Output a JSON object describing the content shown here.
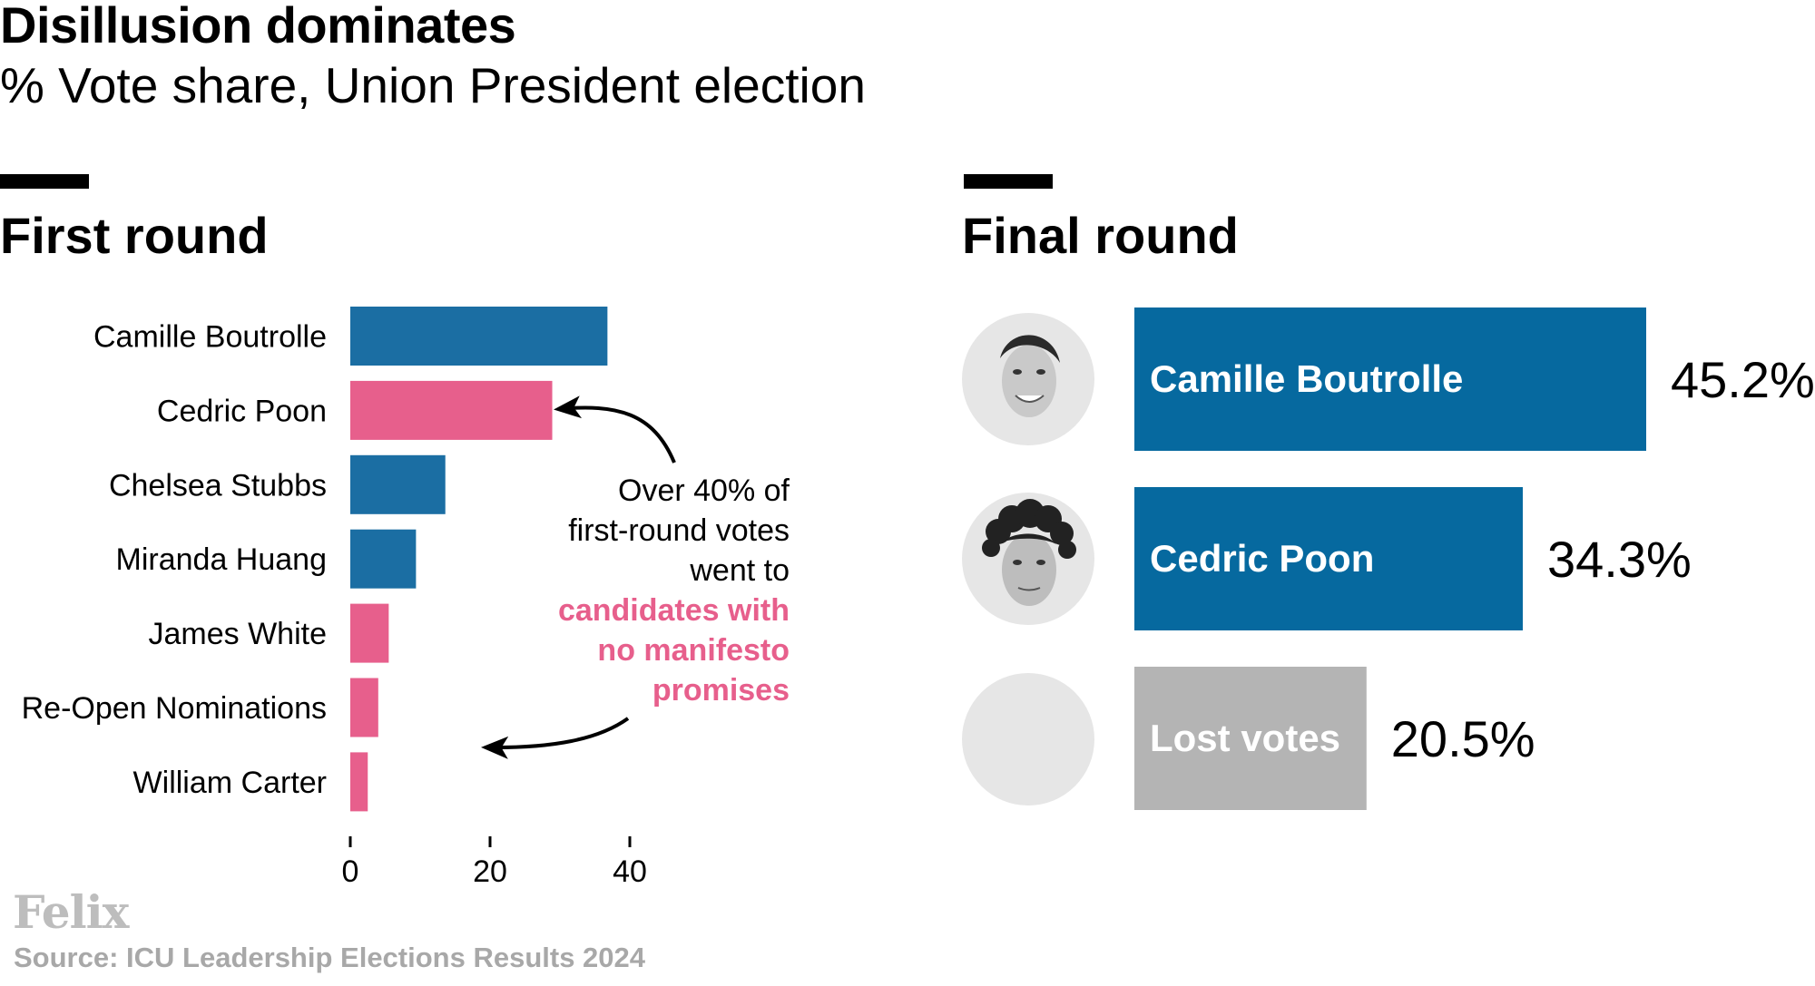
{
  "title": "Disillusion dominates",
  "subtitle": "% Vote share, Union President election",
  "colors": {
    "manifesto": "#1b6ea3",
    "no_manifesto": "#e75f8c",
    "final_bar": "#06699f",
    "lost": "#b4b4b4",
    "avatar_bg": "#e6e6e6",
    "source_text": "#a8a8a8"
  },
  "chart_data": [
    {
      "type": "bar",
      "orientation": "horizontal",
      "title": "First round",
      "categories": [
        "Camille Boutrolle",
        "Cedric Poon",
        "Chelsea Stubbs",
        "Miranda Huang",
        "James White",
        "Re-Open Nominations",
        "William Carter"
      ],
      "values": [
        36.8,
        28.9,
        13.6,
        9.4,
        5.5,
        4.0,
        2.5
      ],
      "has_manifesto": [
        true,
        false,
        true,
        true,
        false,
        false,
        false
      ],
      "xlim": [
        0,
        40
      ],
      "xticks": [
        "0",
        "20",
        "40"
      ],
      "grid": false,
      "annotation": {
        "lines": [
          "Over 40% of",
          "first-round votes",
          "went to"
        ],
        "highlight_lines": [
          "candidates with",
          "no manifesto",
          "promises"
        ]
      }
    },
    {
      "type": "bar",
      "orientation": "horizontal",
      "title": "Final round",
      "categories": [
        "Camille Boutrolle",
        "Cedric Poon",
        "Lost votes"
      ],
      "values": [
        45.2,
        34.3,
        20.5
      ],
      "value_labels": [
        "45.2%",
        "34.3%",
        "20.5%"
      ],
      "avatars": [
        "woman-face-photo-icon",
        "man-face-photo-icon",
        "empty-avatar-icon"
      ]
    }
  ],
  "branding": {
    "logo": "Felix",
    "source": "Source: ICU Leadership Elections Results 2024"
  }
}
